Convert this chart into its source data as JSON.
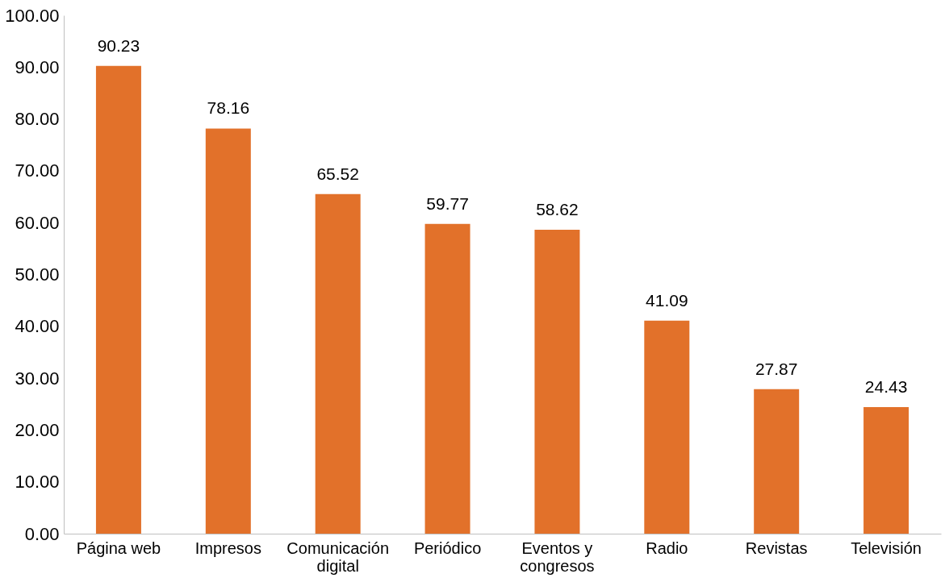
{
  "chart_data": {
    "type": "bar",
    "categories": [
      "Página web",
      "Impresos",
      "Comunicación digital",
      "Periódico",
      "Eventos y congresos",
      "Radio",
      "Revistas",
      "Televisión"
    ],
    "values": [
      90.23,
      78.16,
      65.52,
      59.77,
      58.62,
      41.09,
      27.87,
      24.43
    ],
    "color": "#e2712a",
    "data_labels": true,
    "grid": false,
    "ylim": [
      0,
      100
    ],
    "yticks": [
      {
        "value": 0,
        "label": "0.00"
      },
      {
        "value": 10,
        "label": "10.00"
      },
      {
        "value": 20,
        "label": "20.00"
      },
      {
        "value": 30,
        "label": "30.00"
      },
      {
        "value": 40,
        "label": "40.00"
      },
      {
        "value": 50,
        "label": "50.00"
      },
      {
        "value": 60,
        "label": "60.00"
      },
      {
        "value": 70,
        "label": "70.00"
      },
      {
        "value": 80,
        "label": "80.00"
      },
      {
        "value": 90,
        "label": "90.00"
      },
      {
        "value": 100,
        "label": "100.00"
      }
    ]
  }
}
